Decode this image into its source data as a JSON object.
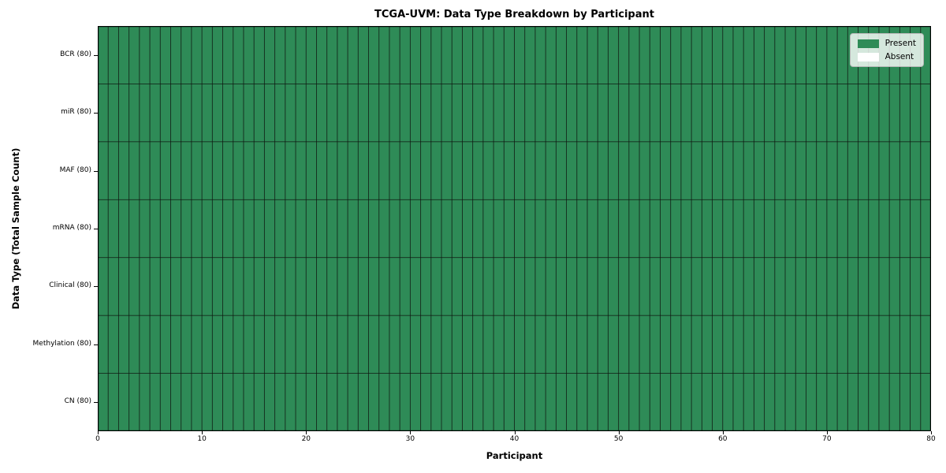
{
  "chart_data": {
    "type": "heatmap",
    "title": "TCGA-UVM: Data Type Breakdown by Participant",
    "xlabel": "Participant",
    "ylabel": "Data Type (Total Sample Count)",
    "x_ticks": [
      0,
      10,
      20,
      30,
      40,
      50,
      60,
      70,
      80
    ],
    "x_range": [
      0,
      80
    ],
    "n_participants": 80,
    "rows": [
      {
        "label": "BCR (80)",
        "data_type": "BCR",
        "total_sample_count": 80,
        "present_count": 80
      },
      {
        "label": "miR (80)",
        "data_type": "miR",
        "total_sample_count": 80,
        "present_count": 80
      },
      {
        "label": "MAF (80)",
        "data_type": "MAF",
        "total_sample_count": 80,
        "present_count": 80
      },
      {
        "label": "mRNA (80)",
        "data_type": "mRNA",
        "total_sample_count": 80,
        "present_count": 80
      },
      {
        "label": "Clinical (80)",
        "data_type": "Clinical",
        "total_sample_count": 80,
        "present_count": 80
      },
      {
        "label": "Methylation (80)",
        "data_type": "Methylation",
        "total_sample_count": 80,
        "present_count": 80
      },
      {
        "label": "CN (80)",
        "data_type": "CN",
        "total_sample_count": 80,
        "present_count": 80
      }
    ],
    "legend": [
      {
        "label": "Present",
        "color": "#2e8b57"
      },
      {
        "label": "Absent",
        "color": "#ffffff"
      }
    ],
    "legend_position": "upper right",
    "grid": true,
    "colors": {
      "present": "#2e8b57",
      "absent": "#ffffff",
      "gridline": "rgba(15,25,18,0.85)",
      "border": "#000000",
      "background": "#ffffff"
    }
  }
}
